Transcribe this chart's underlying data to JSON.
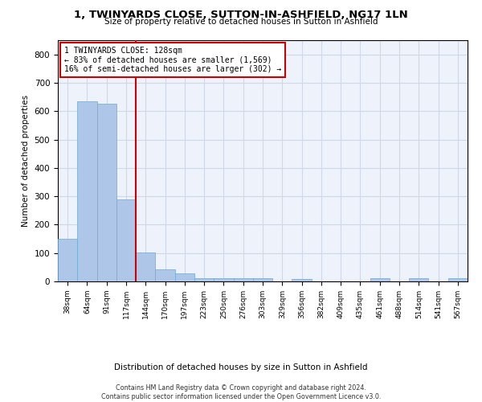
{
  "title": "1, TWINYARDS CLOSE, SUTTON-IN-ASHFIELD, NG17 1LN",
  "subtitle": "Size of property relative to detached houses in Sutton in Ashfield",
  "xlabel": "Distribution of detached houses by size in Sutton in Ashfield",
  "ylabel": "Number of detached properties",
  "bar_values": [
    150,
    635,
    627,
    290,
    102,
    42,
    28,
    12,
    12,
    10,
    10,
    0,
    8,
    0,
    0,
    0,
    10,
    0,
    10,
    0,
    10
  ],
  "categories": [
    "38sqm",
    "64sqm",
    "91sqm",
    "117sqm",
    "144sqm",
    "170sqm",
    "197sqm",
    "223sqm",
    "250sqm",
    "276sqm",
    "303sqm",
    "329sqm",
    "356sqm",
    "382sqm",
    "409sqm",
    "435sqm",
    "461sqm",
    "488sqm",
    "514sqm",
    "541sqm",
    "567sqm"
  ],
  "bar_color": "#aec6e8",
  "bar_edge_color": "#6aaad4",
  "grid_color": "#d0d8e8",
  "background_color": "#eef2fa",
  "vline_x": 3.5,
  "vline_color": "#cc0000",
  "annotation_line1": "1 TWINYARDS CLOSE: 128sqm",
  "annotation_line2": "← 83% of detached houses are smaller (1,569)",
  "annotation_line3": "16% of semi-detached houses are larger (302) →",
  "annotation_box_color": "white",
  "annotation_box_edge": "#cc0000",
  "footer_text": "Contains HM Land Registry data © Crown copyright and database right 2024.\nContains public sector information licensed under the Open Government Licence v3.0.",
  "ylim": [
    0,
    850
  ],
  "yticks": [
    0,
    100,
    200,
    300,
    400,
    500,
    600,
    700,
    800
  ]
}
